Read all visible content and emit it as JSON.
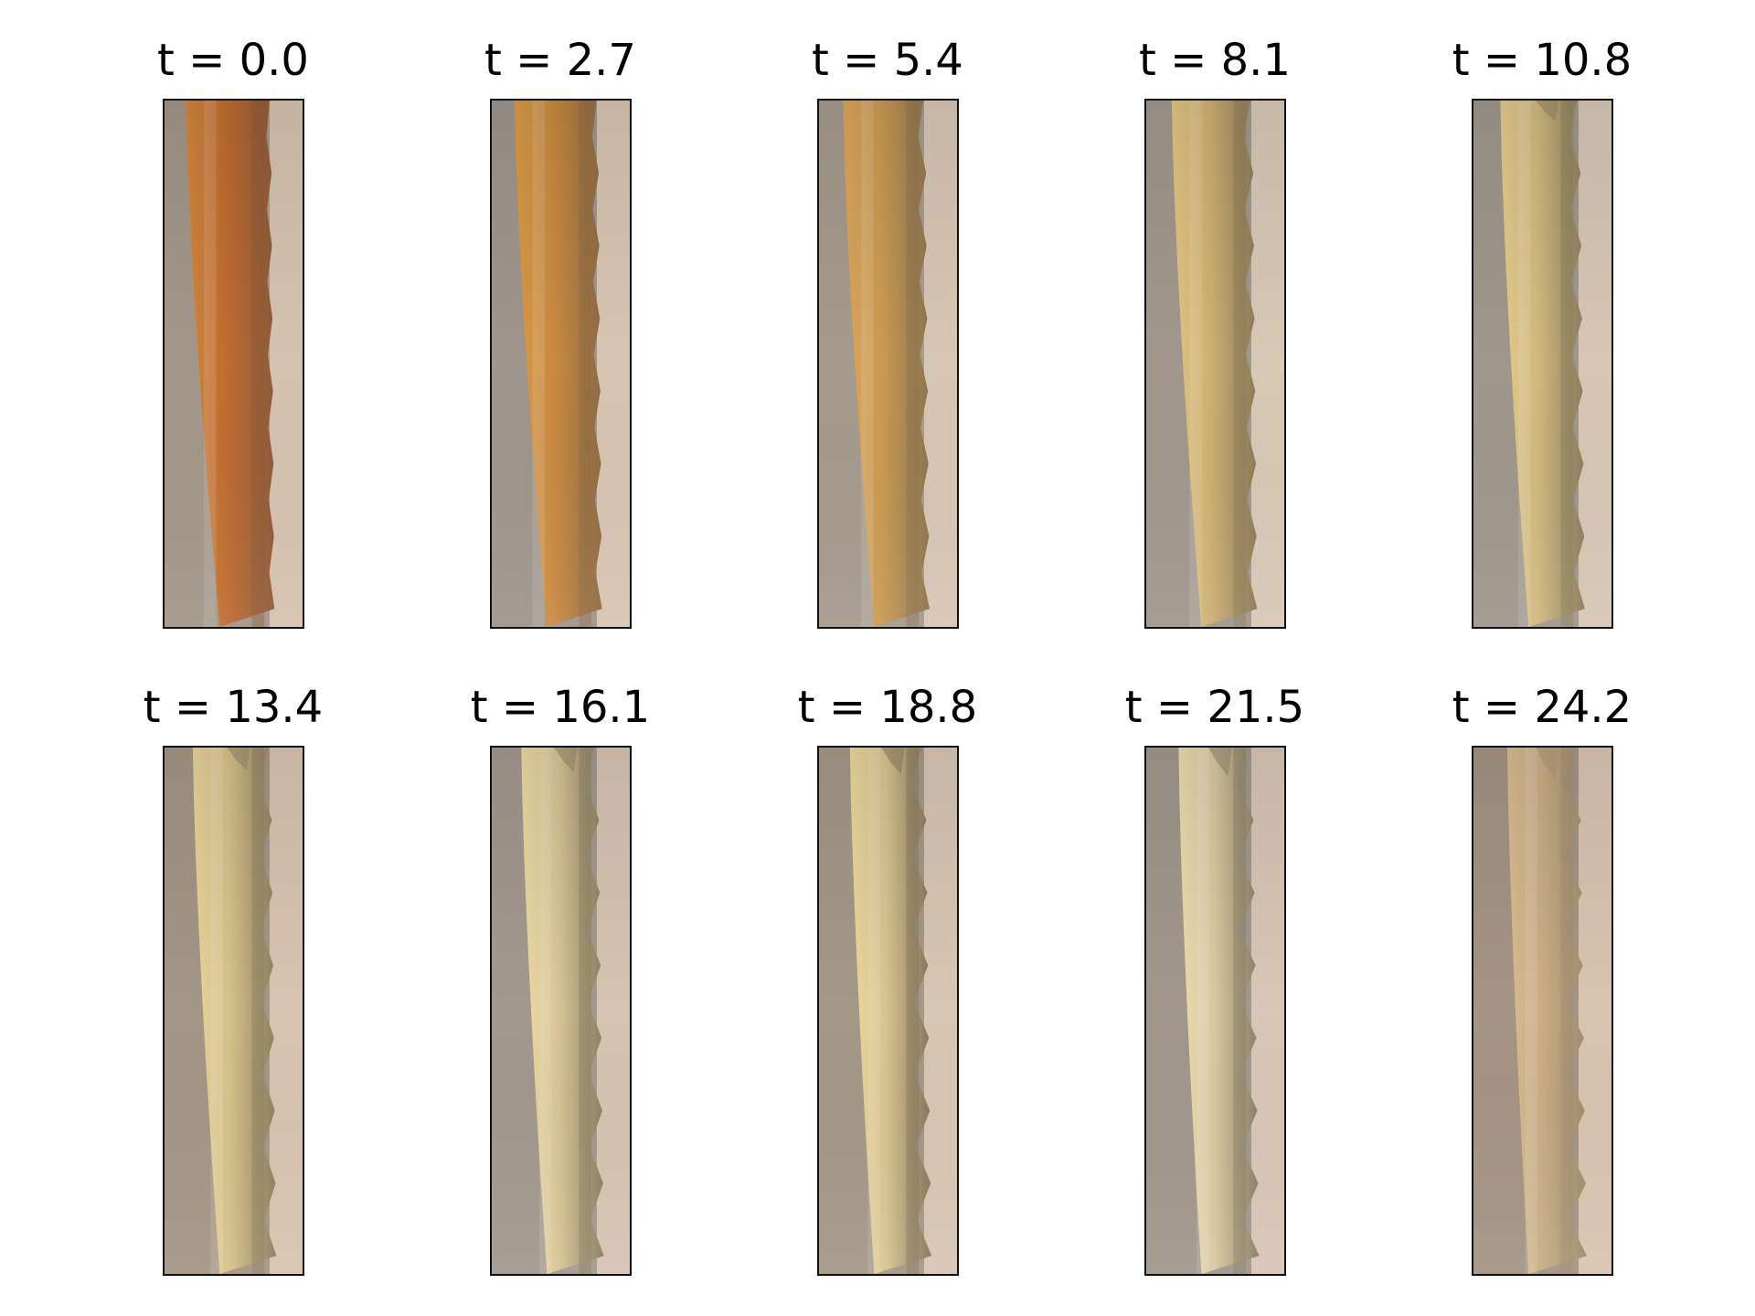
{
  "figure": {
    "panels": [
      {
        "title": "t = 0.0",
        "stage": 0.0,
        "palette": {
          "left_bg": "#a3968a",
          "stem_light": "#d2873e",
          "stem_core": "#c06c30",
          "stem_dark": "#8f5a3a",
          "right_bg": "#d6c2b0"
        }
      },
      {
        "title": "t = 2.7",
        "stage": 0.11,
        "palette": {
          "left_bg": "#9f958c",
          "stem_light": "#d99a48",
          "stem_core": "#c98a40",
          "stem_dark": "#8e6a44",
          "right_bg": "#d8c4b2"
        }
      },
      {
        "title": "t = 5.4",
        "stage": 0.22,
        "palette": {
          "left_bg": "#a69a8e",
          "stem_light": "#dca65c",
          "stem_core": "#c99a52",
          "stem_dark": "#8d7450",
          "right_bg": "#d8c6b4"
        }
      },
      {
        "title": "t = 8.1",
        "stage": 0.33,
        "palette": {
          "left_bg": "#a2978d",
          "stem_light": "#e2c684",
          "stem_core": "#cdb072",
          "stem_dark": "#8c7a58",
          "right_bg": "#d8c8b6"
        }
      },
      {
        "title": "t = 10.8",
        "stage": 0.44,
        "palette": {
          "left_bg": "#a0968c",
          "stem_light": "#e4cc8e",
          "stem_core": "#d0b87e",
          "stem_dark": "#8a7c5e",
          "right_bg": "#d7c6b4"
        }
      },
      {
        "title": "t = 13.4",
        "stage": 0.55,
        "palette": {
          "left_bg": "#a49686",
          "stem_light": "#ead49c",
          "stem_core": "#d6c08a",
          "stem_dark": "#8c7e60",
          "right_bg": "#d8c4b0"
        }
      },
      {
        "title": "t = 16.1",
        "stage": 0.66,
        "palette": {
          "left_bg": "#a3988e",
          "stem_light": "#ecdaa6",
          "stem_core": "#d8c496",
          "stem_dark": "#8a7e62",
          "right_bg": "#d6c4b2"
        }
      },
      {
        "title": "t = 18.8",
        "stage": 0.77,
        "palette": {
          "left_bg": "#a49888",
          "stem_light": "#ecd8a0",
          "stem_core": "#d8c290",
          "stem_dark": "#84765a",
          "right_bg": "#d8c6b4"
        }
      },
      {
        "title": "t = 21.5",
        "stage": 0.88,
        "palette": {
          "left_bg": "#a2978c",
          "stem_light": "#ecdcb0",
          "stem_core": "#d8c8a0",
          "stem_dark": "#8a7e66",
          "right_bg": "#d8c6b6"
        }
      },
      {
        "title": "t = 24.2",
        "stage": 1.0,
        "palette": {
          "left_bg": "#a59484",
          "stem_light": "#d9bc92",
          "stem_core": "#c8ac84",
          "stem_dark": "#a08c6e",
          "right_bg": "#d9c4b0"
        }
      }
    ]
  }
}
